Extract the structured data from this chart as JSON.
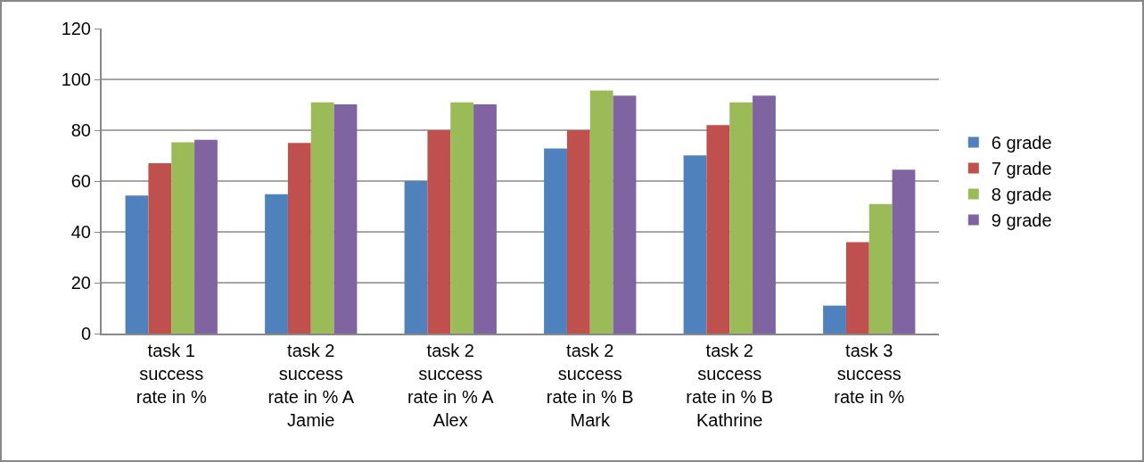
{
  "chart_data": {
    "type": "bar",
    "categories": [
      "task 1 success rate in %",
      "task 2 success rate in % A Jamie",
      "task 2 success rate in % A Alex",
      "task 2 success rate in % B Mark",
      "task 2 success rate in % B Kathrine",
      "task 3 success rate in %"
    ],
    "series": [
      {
        "name": "6 grade",
        "color": "#4f81bd",
        "values": [
          54.3,
          54.8,
          60,
          72.8,
          70.1,
          11
        ]
      },
      {
        "name": "7 grade",
        "color": "#c0504d",
        "values": [
          67,
          75,
          80,
          80,
          82,
          36
        ]
      },
      {
        "name": "8 grade",
        "color": "#9bbb59",
        "values": [
          75.3,
          91,
          91,
          95.6,
          91,
          51
        ]
      },
      {
        "name": "9 grade",
        "color": "#8064a2",
        "values": [
          76.2,
          90.2,
          90.2,
          93.6,
          93.6,
          64.5
        ]
      }
    ],
    "ylim": [
      0,
      120
    ],
    "yticks": [
      0,
      20,
      40,
      60,
      80,
      100,
      120
    ],
    "grid": "y",
    "legend": "right"
  }
}
